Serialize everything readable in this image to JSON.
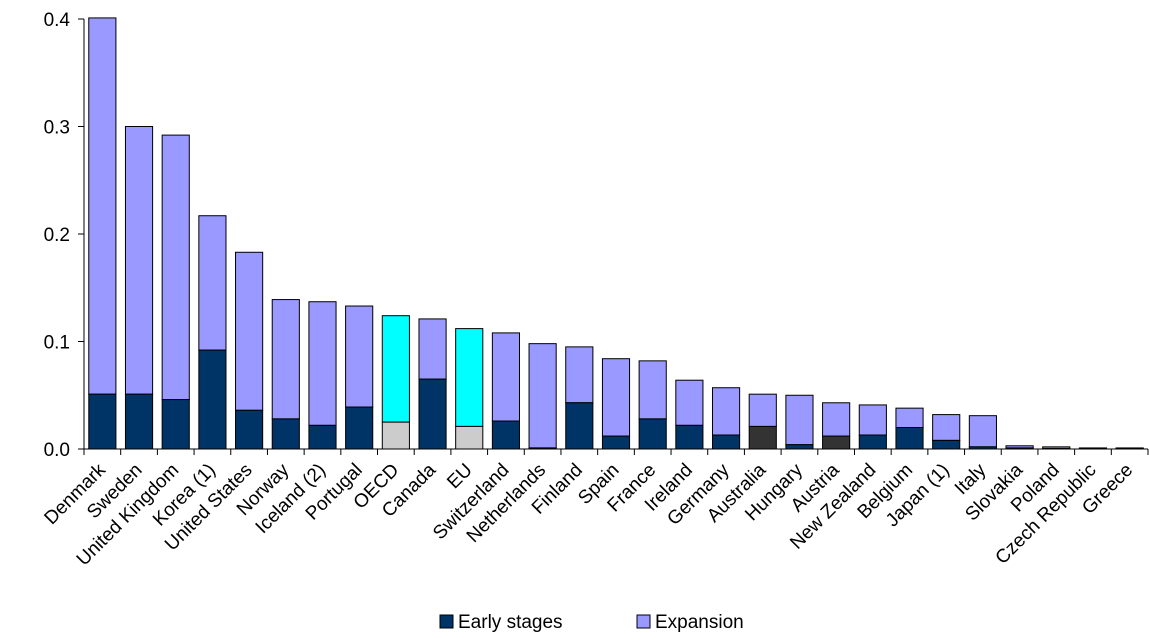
{
  "chart_data": {
    "type": "bar",
    "stacked": true,
    "title": "",
    "xlabel": "",
    "ylabel": "",
    "ylim": [
      0,
      0.4
    ],
    "y_ticks": [
      "0.0",
      "0.1",
      "0.2",
      "0.3",
      "0.4"
    ],
    "legend_position": "bottom",
    "categories": [
      "Denmark",
      "Sweden",
      "United Kingdom",
      "Korea (1)",
      "United States",
      "Norway",
      "Iceland (2)",
      "Portugal",
      "OECD",
      "Canada",
      "EU",
      "Switzerland",
      "Netherlands",
      "Finland",
      "Spain",
      "France",
      "Ireland",
      "Germany",
      "Australia",
      "Hungary",
      "Austria",
      "New Zealand",
      "Belgium",
      "Japan (1)",
      "Italy",
      "Slovakia",
      "Poland",
      "Czech Republic",
      "Greece"
    ],
    "series": [
      {
        "name": "Early stages",
        "color": "#003366",
        "values": [
          0.051,
          0.051,
          0.046,
          0.092,
          0.036,
          0.028,
          0.022,
          0.039,
          0.025,
          0.065,
          0.021,
          0.026,
          0.001,
          0.043,
          0.012,
          0.028,
          0.022,
          0.013,
          0.021,
          0.004,
          0.012,
          0.013,
          0.02,
          0.008,
          0.002,
          0.001,
          0.0005,
          0.0005,
          0.0005
        ]
      },
      {
        "name": "Expansion",
        "color": "#9999ff",
        "values": [
          0.35,
          0.249,
          0.246,
          0.125,
          0.147,
          0.111,
          0.115,
          0.094,
          0.099,
          0.056,
          0.091,
          0.082,
          0.097,
          0.052,
          0.072,
          0.054,
          0.042,
          0.044,
          0.03,
          0.046,
          0.031,
          0.028,
          0.018,
          0.024,
          0.029,
          0.002,
          0.0015,
          0.0005,
          0.0005
        ]
      }
    ],
    "highlight_colors": {
      "OECD": {
        "early": "#cccccc",
        "expansion": "#00ffff"
      },
      "EU": {
        "early": "#cccccc",
        "expansion": "#00ffff"
      },
      "Australia": {
        "early": "#333333",
        "expansion": "#9999ff"
      },
      "Austria": {
        "early": "#333333",
        "expansion": "#9999ff"
      }
    }
  }
}
